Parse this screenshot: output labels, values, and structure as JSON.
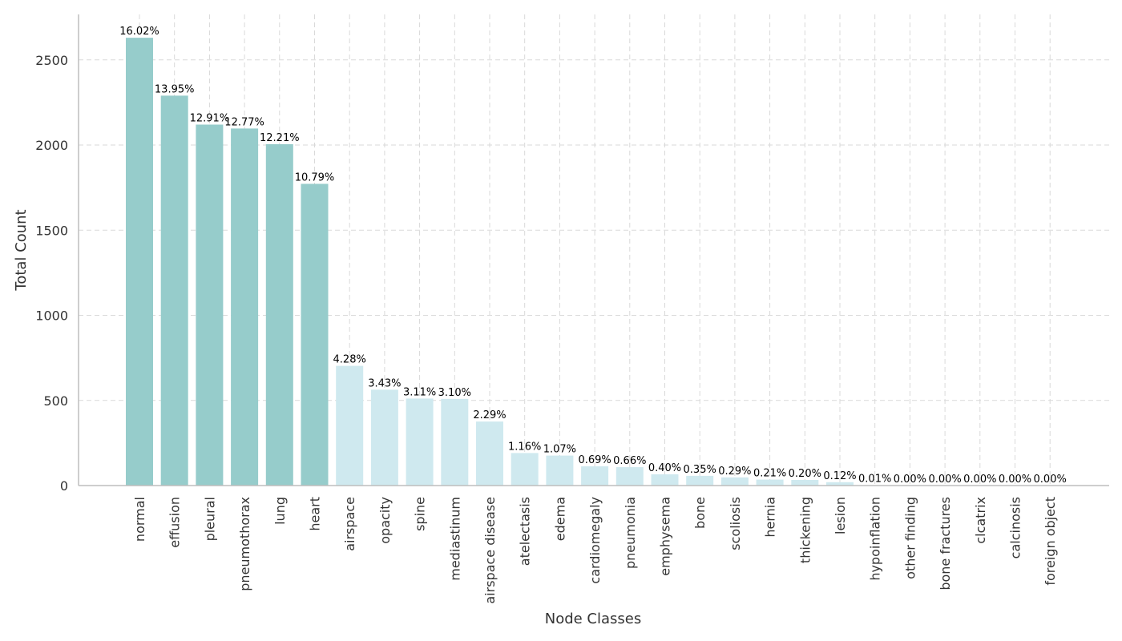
{
  "chart_data": {
    "type": "bar",
    "xlabel": "Node Classes",
    "ylabel": "Total Count",
    "ylim": [
      0,
      2750
    ],
    "yticks": [
      0,
      500,
      1000,
      1500,
      2000,
      2500
    ],
    "grid": true,
    "categories": [
      "normal",
      "effusion",
      "pleural",
      "pneumothorax",
      "lung",
      "heart",
      "airspace",
      "opacity",
      "spine",
      "mediastinum",
      "airspace disease",
      "atelectasis",
      "edema",
      "cardiomegaly",
      "pneumonia",
      "emphysema",
      "bone",
      "scoliosis",
      "hernia",
      "thickening",
      "lesion",
      "hypoinflation",
      "other finding",
      "bone fractures",
      "clcatrix",
      "calcinosis",
      "foreign object"
    ],
    "values": [
      2630,
      2290,
      2120,
      2097,
      2005,
      1772,
      703,
      563,
      511,
      509,
      376,
      191,
      176,
      113,
      108,
      66,
      57,
      48,
      35,
      33,
      20,
      2,
      0,
      0,
      0,
      0,
      0
    ],
    "percent_labels": [
      "16.02%",
      "13.95%",
      "12.91%",
      "12.77%",
      "12.21%",
      "10.79%",
      "4.28%",
      "3.43%",
      "3.11%",
      "3.10%",
      "2.29%",
      "1.16%",
      "1.07%",
      "0.69%",
      "0.66%",
      "0.40%",
      "0.35%",
      "0.29%",
      "0.21%",
      "0.20%",
      "0.12%",
      "0.01%",
      "0.00%",
      "0.00%",
      "0.00%",
      "0.00%",
      "0.00%"
    ],
    "colors": {
      "top_group": "#96cccb",
      "other_group": "#cfe9ef"
    },
    "top_group_count": 6
  }
}
